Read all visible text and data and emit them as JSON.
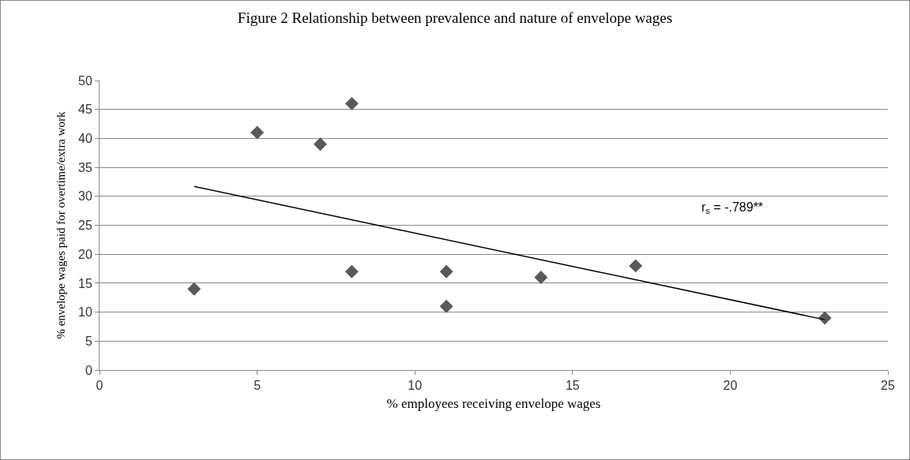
{
  "chart_data": {
    "type": "scatter",
    "title": "Figure 2 Relationship between prevalence and nature of envelope wages",
    "xlabel": "% employees receiving envelope wages",
    "ylabel": "% envelope wages paid for overtime/extra work",
    "x": [
      3,
      5,
      7,
      8,
      8,
      11,
      11,
      14,
      17,
      23
    ],
    "series": [
      {
        "color": "#595959",
        "values": [
          14,
          41,
          39,
          46,
          17,
          17,
          11,
          16,
          18,
          9
        ]
      },
      {
        "type": "line",
        "color": "#000000",
        "marker": "none",
        "x": [
          3,
          23
        ],
        "values": [
          31.7,
          8.7
        ]
      }
    ],
    "annotations": [
      "r$_{s}$ = -.789**"
    ],
    "xlim": [
      0,
      25
    ],
    "xticks": [
      0,
      5,
      10,
      15,
      20,
      25
    ],
    "ylim": [
      0,
      50
    ],
    "yticks": [
      0,
      5,
      10,
      15,
      20,
      25,
      30,
      35,
      40,
      45,
      50
    ],
    "grid": "y",
    "marker": "diamond"
  }
}
